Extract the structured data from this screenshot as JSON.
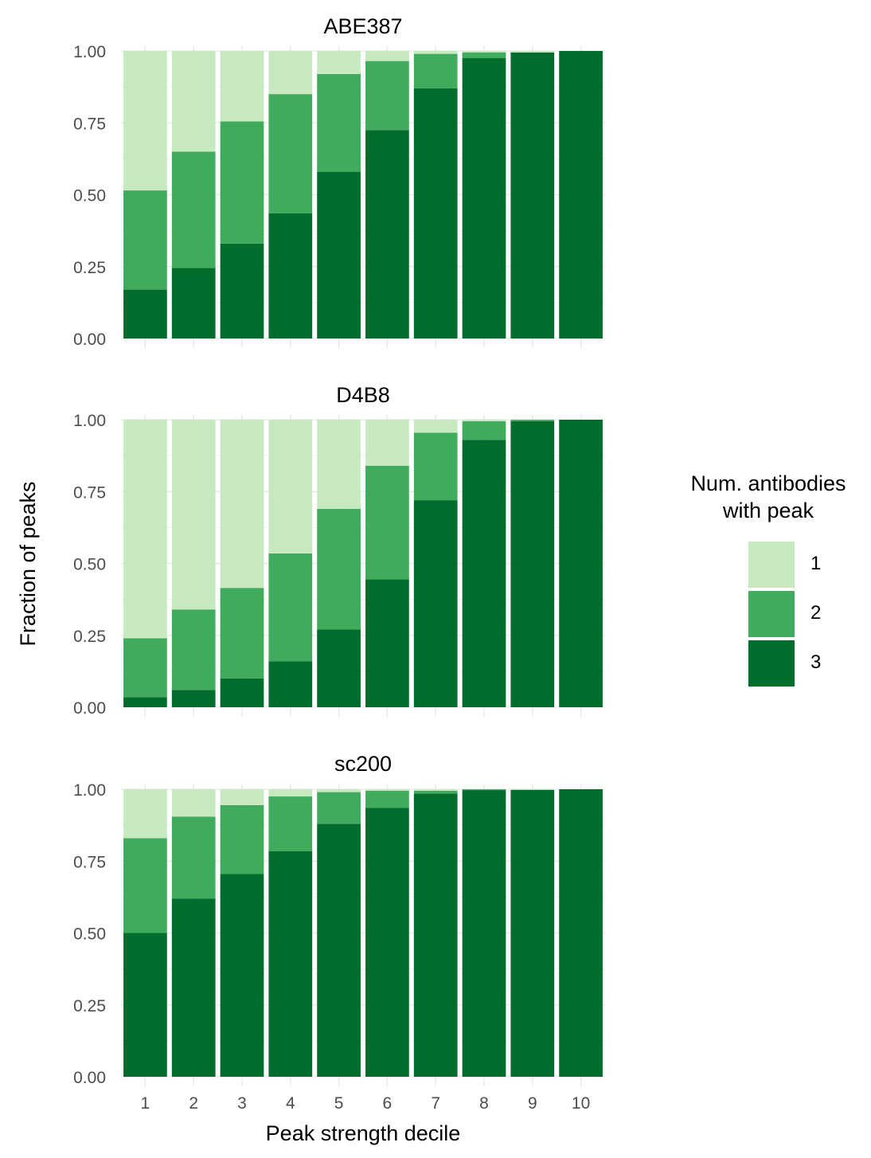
{
  "chart_data": {
    "type": "bar",
    "stacked": true,
    "xlabel": "Peak strength decile",
    "ylabel": "Fraction of peaks",
    "categories": [
      "1",
      "2",
      "3",
      "4",
      "5",
      "6",
      "7",
      "8",
      "9",
      "10"
    ],
    "ylim": [
      0,
      1
    ],
    "y_ticks": [
      "0.00",
      "0.25",
      "0.50",
      "0.75",
      "1.00"
    ],
    "grid": true,
    "legend": {
      "title": "Num. antibodies\nwith peak",
      "title_lines": [
        "Num. antibodies",
        "with peak"
      ],
      "placement": "right",
      "entries": [
        {
          "label": "1",
          "color": "#c7e9c0"
        },
        {
          "label": "2",
          "color": "#41ab5d"
        },
        {
          "label": "3",
          "color": "#006d2c"
        }
      ]
    },
    "panels": [
      {
        "title": "ABE387",
        "series": [
          {
            "name": "3",
            "color": "#006d2c",
            "values": [
              0.17,
              0.245,
              0.33,
              0.435,
              0.58,
              0.725,
              0.87,
              0.975,
              0.995,
              1.0
            ]
          },
          {
            "name": "2",
            "color": "#41ab5d",
            "values": [
              0.345,
              0.405,
              0.425,
              0.415,
              0.34,
              0.24,
              0.12,
              0.02,
              0.0,
              0.0
            ]
          },
          {
            "name": "1",
            "color": "#c7e9c0",
            "values": [
              0.485,
              0.35,
              0.245,
              0.15,
              0.08,
              0.035,
              0.01,
              0.005,
              0.005,
              0.0
            ]
          }
        ]
      },
      {
        "title": "D4B8",
        "series": [
          {
            "name": "3",
            "color": "#006d2c",
            "values": [
              0.035,
              0.06,
              0.1,
              0.16,
              0.27,
              0.445,
              0.72,
              0.93,
              0.995,
              1.0
            ]
          },
          {
            "name": "2",
            "color": "#41ab5d",
            "values": [
              0.205,
              0.28,
              0.315,
              0.375,
              0.42,
              0.395,
              0.235,
              0.065,
              0.005,
              0.0
            ]
          },
          {
            "name": "1",
            "color": "#c7e9c0",
            "values": [
              0.76,
              0.66,
              0.585,
              0.465,
              0.31,
              0.16,
              0.045,
              0.005,
              0.0,
              0.0
            ]
          }
        ]
      },
      {
        "title": "sc200",
        "series": [
          {
            "name": "3",
            "color": "#006d2c",
            "values": [
              0.5,
              0.62,
              0.705,
              0.785,
              0.88,
              0.935,
              0.985,
              0.997,
              0.998,
              1.0
            ]
          },
          {
            "name": "2",
            "color": "#41ab5d",
            "values": [
              0.33,
              0.285,
              0.24,
              0.19,
              0.11,
              0.06,
              0.01,
              0.003,
              0.0,
              0.0
            ]
          },
          {
            "name": "1",
            "color": "#c7e9c0",
            "values": [
              0.17,
              0.095,
              0.055,
              0.025,
              0.01,
              0.005,
              0.005,
              0.0,
              0.002,
              0.0
            ]
          }
        ]
      }
    ]
  }
}
